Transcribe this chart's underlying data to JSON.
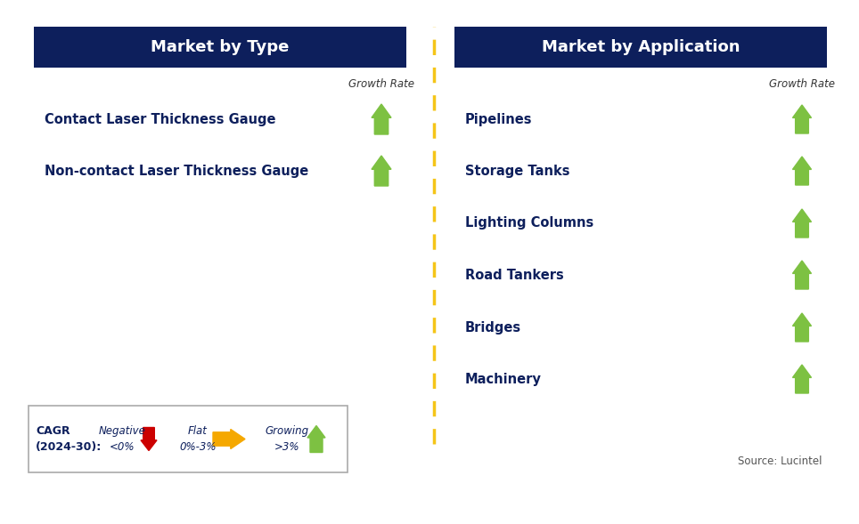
{
  "left_panel_title": "Market by Type",
  "right_panel_title": "Market by Application",
  "left_items": [
    "Contact Laser Thickness Gauge",
    "Non-contact Laser Thickness Gauge"
  ],
  "right_items": [
    "Pipelines",
    "Storage Tanks",
    "Lighting Columns",
    "Road Tankers",
    "Bridges",
    "Machinery"
  ],
  "header_bg": "#0d1f5c",
  "header_text": "#ffffff",
  "item_text_color": "#0d1f5c",
  "growth_label": "Growth Rate",
  "growth_label_color": "#333333",
  "arrow_up_color": "#7dc142",
  "dashed_line_color": "#f5c518",
  "legend_negative_label": "Negative",
  "legend_negative_value": "<0%",
  "legend_flat_label": "Flat",
  "legend_flat_value": "0%-3%",
  "legend_growing_label": "Growing",
  "legend_growing_value": ">3%",
  "legend_negative_color": "#cc0000",
  "legend_flat_color": "#f5a800",
  "legend_growing_color": "#7dc142",
  "source_text": "Source: Lucintel",
  "bg_color": "#ffffff"
}
